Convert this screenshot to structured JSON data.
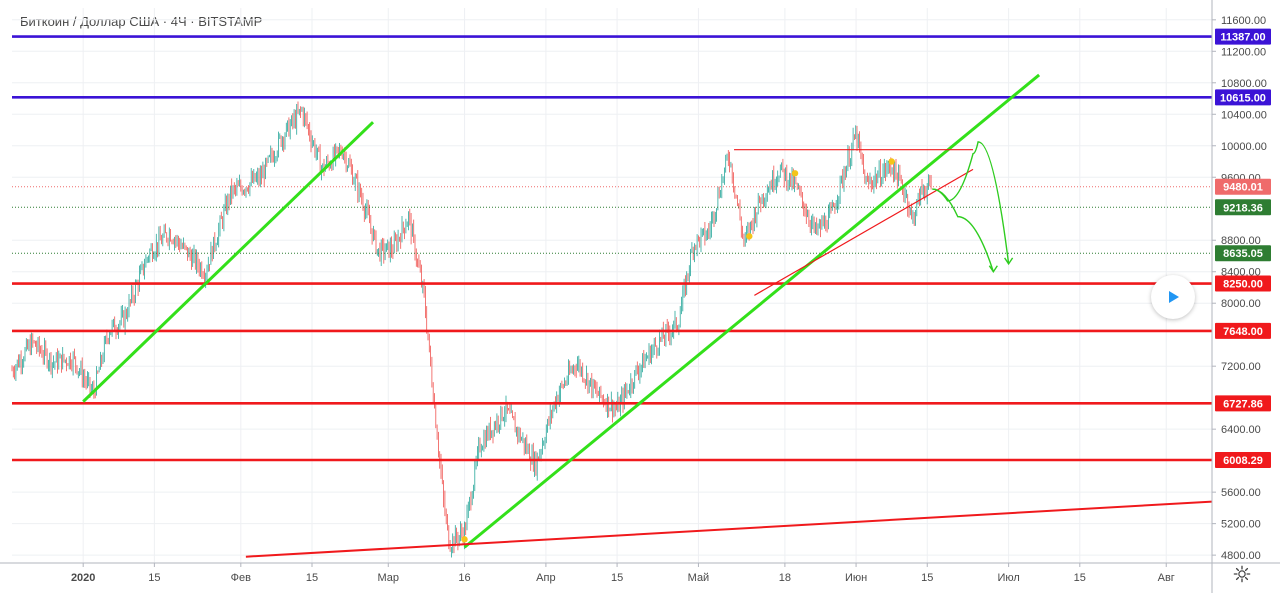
{
  "header": {
    "title": "Биткоин / Доллар США · 4Ч · BITSTAMP"
  },
  "icons": {
    "play": "play-icon",
    "settings": "gear-icon"
  },
  "colors": {
    "up_candle": "#26a69a",
    "down_candle": "#ef5350",
    "trend_green": "#33e01a",
    "support_red": "#f0191c",
    "resistance_blue": "#3b13d6",
    "forecast_green": "#2ecc1f",
    "current_price_bg": "#ef6b6b",
    "dotted_level_bg": "#2e7d32",
    "marker_yellow": "#f5c518"
  },
  "chart_data": {
    "type": "line",
    "symbol": "BTCUSD",
    "interval": "4H",
    "exchange": "BITSTAMP",
    "ylim": [
      4700,
      11750
    ],
    "y_ticks": [
      11600,
      11200,
      10800,
      10400,
      10000,
      9600,
      8800,
      8400,
      8000,
      7200,
      6400,
      5600,
      5200,
      4800
    ],
    "y_tick_labels": [
      "11600.00",
      "11200.00",
      "10800.00",
      "10400.00",
      "10000.00",
      "9600.00",
      "8800.00",
      "8400.00",
      "8000.00",
      "7200.00",
      "6400.00",
      "5600.00",
      "5200.00",
      "4800.00"
    ],
    "x_range": [
      "2019-12-18",
      "2020-08-10"
    ],
    "x_ticks": [
      "2020-01-01",
      "2020-01-15",
      "2020-02-01",
      "2020-02-15",
      "2020-03-01",
      "2020-03-16",
      "2020-04-01",
      "2020-04-15",
      "2020-05-01",
      "2020-05-18",
      "2020-06-01",
      "2020-06-15",
      "2020-07-01",
      "2020-07-15",
      "2020-08-01"
    ],
    "x_tick_labels": [
      "2020",
      "15",
      "Фев",
      "15",
      "Мар",
      "16",
      "Апр",
      "15",
      "Май",
      "18",
      "Июн",
      "15",
      "Июл",
      "15",
      "Авг"
    ],
    "price_path": [
      [
        "2019-12-18",
        7150
      ],
      [
        "2019-12-22",
        7500
      ],
      [
        "2019-12-26",
        7250
      ],
      [
        "2019-12-30",
        7300
      ],
      [
        "2020-01-02",
        6950
      ],
      [
        "2020-01-03",
        6850
      ],
      [
        "2020-01-06",
        7650
      ],
      [
        "2020-01-09",
        7800
      ],
      [
        "2020-01-14",
        8650
      ],
      [
        "2020-01-18",
        8900
      ],
      [
        "2020-01-22",
        8600
      ],
      [
        "2020-01-25",
        8400
      ],
      [
        "2020-01-30",
        9400
      ],
      [
        "2020-02-05",
        9600
      ],
      [
        "2020-02-09",
        10100
      ],
      [
        "2020-02-13",
        10450
      ],
      [
        "2020-02-17",
        9700
      ],
      [
        "2020-02-21",
        9950
      ],
      [
        "2020-02-25",
        9300
      ],
      [
        "2020-02-28",
        8650
      ],
      [
        "2020-03-02",
        8700
      ],
      [
        "2020-03-05",
        9100
      ],
      [
        "2020-03-08",
        8100
      ],
      [
        "2020-03-12",
        5400
      ],
      [
        "2020-03-13",
        4950
      ],
      [
        "2020-03-16",
        5100
      ],
      [
        "2020-03-19",
        6200
      ],
      [
        "2020-03-24",
        6650
      ],
      [
        "2020-03-30",
        5950
      ],
      [
        "2020-04-03",
        6800
      ],
      [
        "2020-04-07",
        7250
      ],
      [
        "2020-04-11",
        6850
      ],
      [
        "2020-04-15",
        6650
      ],
      [
        "2020-04-19",
        7150
      ],
      [
        "2020-04-23",
        7500
      ],
      [
        "2020-04-27",
        7750
      ],
      [
        "2020-04-30",
        8750
      ],
      [
        "2020-05-03",
        8900
      ],
      [
        "2020-05-07",
        9900
      ],
      [
        "2020-05-10",
        8750
      ],
      [
        "2020-05-13",
        9300
      ],
      [
        "2020-05-17",
        9700
      ],
      [
        "2020-05-20",
        9500
      ],
      [
        "2020-05-24",
        8900
      ],
      [
        "2020-05-27",
        9100
      ],
      [
        "2020-06-01",
        10150
      ],
      [
        "2020-06-03",
        9500
      ],
      [
        "2020-06-08",
        9750
      ],
      [
        "2020-06-11",
        9350
      ],
      [
        "2020-06-12",
        9050
      ],
      [
        "2020-06-14",
        9450
      ],
      [
        "2020-06-16",
        9480
      ]
    ],
    "current_price": 9480.01,
    "horizontal_levels": [
      {
        "value": 11387.0,
        "label": "11387.00",
        "color": "#3b13d6"
      },
      {
        "value": 10615.0,
        "label": "10615.00",
        "color": "#3b13d6"
      },
      {
        "value": 8250.0,
        "label": "8250.00",
        "color": "#f0191c"
      },
      {
        "value": 7648.0,
        "label": "7648.00",
        "color": "#f0191c"
      },
      {
        "value": 6727.86,
        "label": "6727.86",
        "color": "#f0191c"
      },
      {
        "value": 6008.29,
        "label": "6008.29",
        "color": "#f0191c"
      }
    ],
    "dotted_levels": [
      {
        "value": 9480.01,
        "label": "9480.01",
        "color": "#ef6b6b"
      },
      {
        "value": 9218.36,
        "label": "9218.36",
        "color": "#2e7d32"
      },
      {
        "value": 8635.05,
        "label": "8635.05",
        "color": "#2e7d32"
      }
    ],
    "trend_lines": [
      {
        "color": "#33e01a",
        "from": [
          "2020-01-01",
          6750
        ],
        "to": [
          "2020-02-27",
          10300
        ]
      },
      {
        "color": "#33e01a",
        "from": [
          "2020-03-16",
          4900
        ],
        "to": [
          "2020-07-07",
          10900
        ]
      },
      {
        "color": "#f0191c",
        "from": [
          "2020-02-02",
          4780
        ],
        "to": [
          "2020-08-10",
          5480
        ]
      }
    ],
    "pattern_lines": [
      {
        "color": "#f0191c",
        "from": [
          "2020-05-08",
          9950
        ],
        "to": [
          "2020-06-24",
          9950
        ]
      },
      {
        "color": "#f0191c",
        "from": [
          "2020-05-12",
          8100
        ],
        "to": [
          "2020-06-24",
          9700
        ]
      }
    ],
    "forecast_paths": [
      [
        [
          "2020-06-16",
          9450
        ],
        [
          "2020-06-19",
          9300
        ],
        [
          "2020-06-24",
          9900
        ],
        [
          "2020-06-25",
          10050
        ],
        [
          "2020-07-01",
          8500
        ]
      ],
      [
        [
          "2020-06-16",
          9450
        ],
        [
          "2020-06-21",
          9100
        ],
        [
          "2020-06-28",
          8400
        ]
      ]
    ],
    "markers": [
      [
        "2020-03-16",
        5000
      ],
      [
        "2020-05-11",
        8850
      ],
      [
        "2020-05-20",
        9650
      ],
      [
        "2020-06-08",
        9800
      ]
    ]
  }
}
